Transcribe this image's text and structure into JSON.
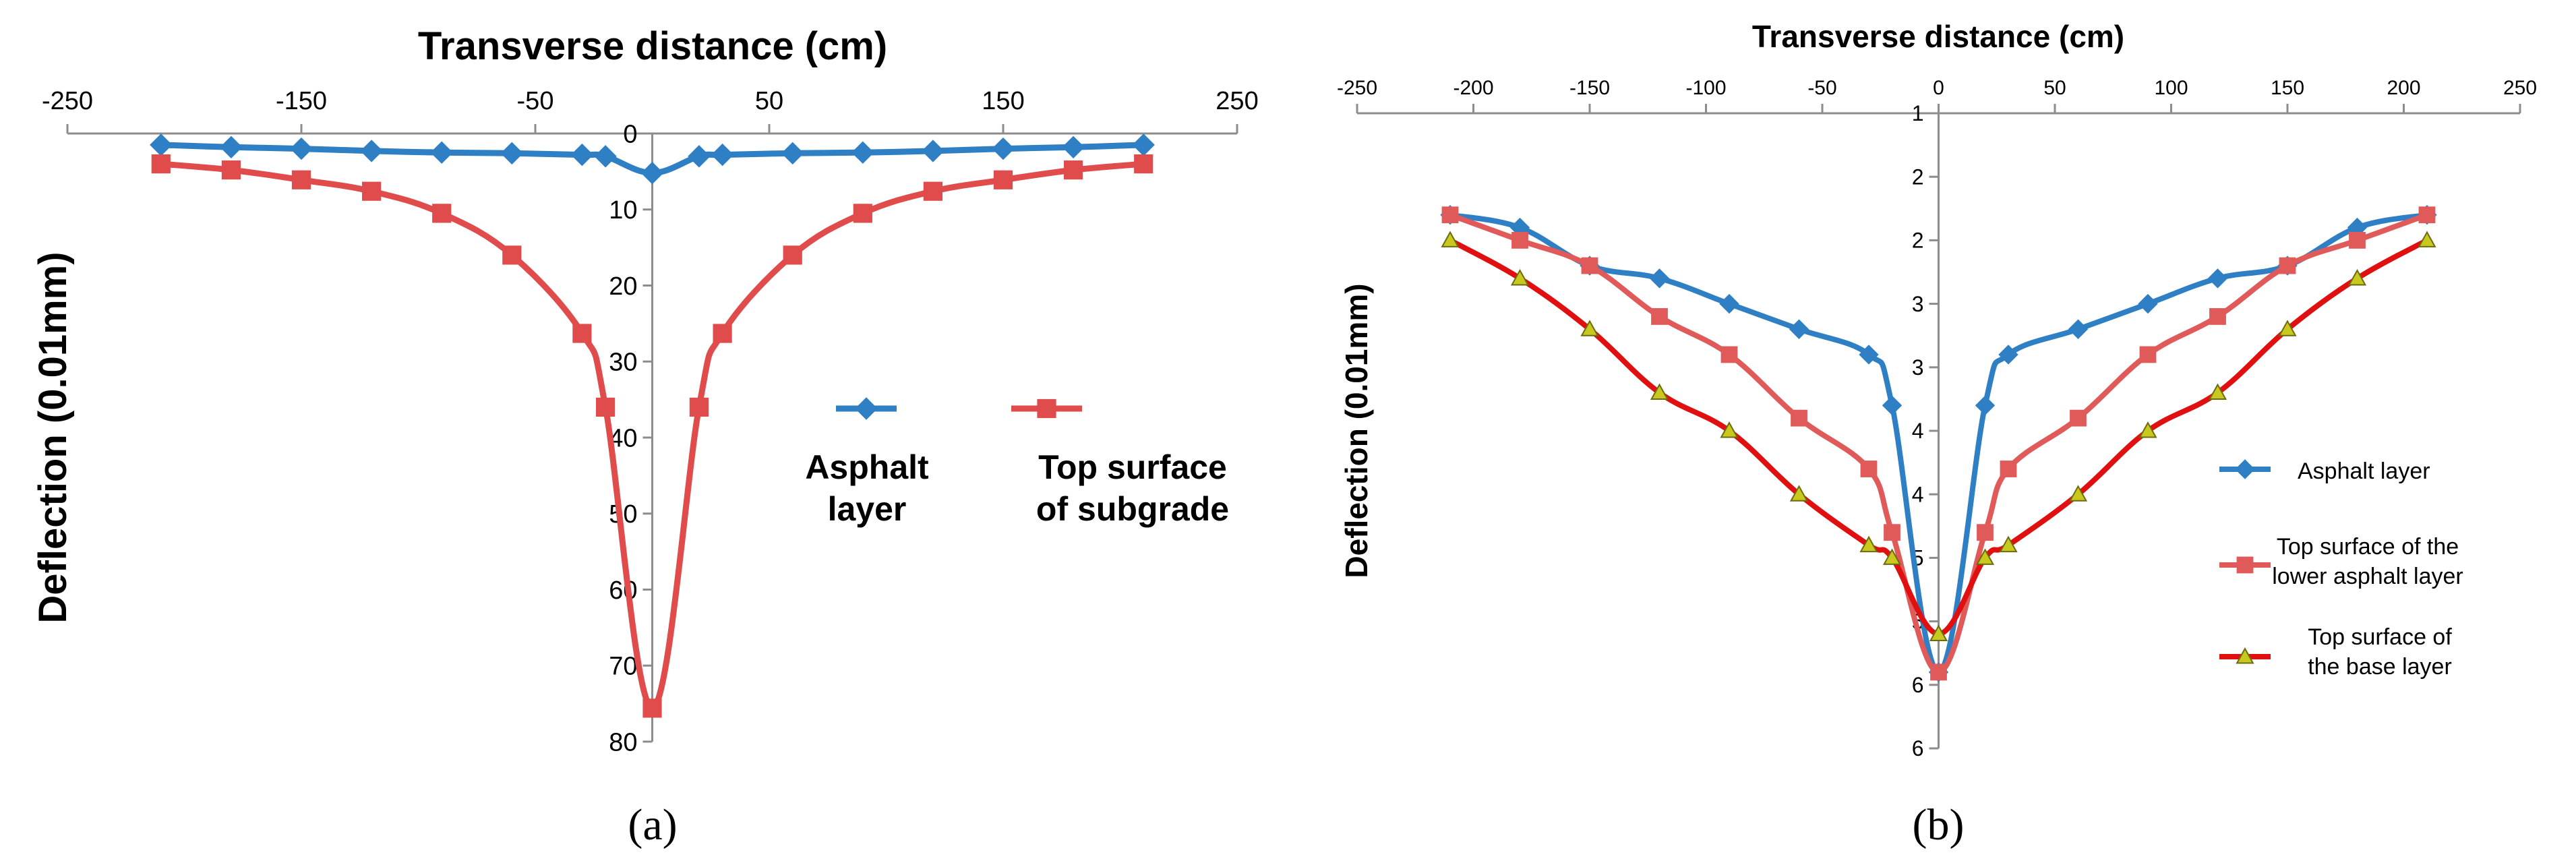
{
  "chart_data": [
    {
      "id": "a",
      "type": "line",
      "panel_label": "(a)",
      "xlabel": "Transverse distance (cm)",
      "ylabel": "Deflection (0.01mm)",
      "xlim": [
        -250,
        250
      ],
      "ylim": [
        0,
        80
      ],
      "y_inverted": true,
      "x_axis_position": "top",
      "x_ticks": [
        "-250",
        "-150",
        "-50",
        "50",
        "150",
        "250"
      ],
      "x_tick_values": [
        -250,
        -150,
        -50,
        50,
        150,
        250
      ],
      "y_ticks": [
        "0",
        "10",
        "20",
        "30",
        "40",
        "50",
        "60",
        "70",
        "80"
      ],
      "y_tick_values": [
        0,
        10,
        20,
        30,
        40,
        50,
        60,
        70,
        80
      ],
      "legend_position": "right",
      "series": [
        {
          "name": "Asphalt layer",
          "legend_lines": [
            "Asphalt",
            "layer"
          ],
          "color": "#2e7fc4",
          "marker": "diamond",
          "x": [
            -210,
            -180,
            -150,
            -120,
            -90,
            -60,
            -30,
            -20,
            0,
            20,
            30,
            60,
            90,
            120,
            150,
            180,
            210
          ],
          "y": [
            1.5,
            1.8,
            2.0,
            2.3,
            2.5,
            2.6,
            2.8,
            3.0,
            5.2,
            3.0,
            2.8,
            2.6,
            2.5,
            2.3,
            2.0,
            1.8,
            1.5
          ]
        },
        {
          "name": "Top surface of subgrade",
          "legend_lines": [
            "Top surface",
            "of subgrade"
          ],
          "color": "#e04b4b",
          "marker": "square",
          "x": [
            -210,
            -180,
            -150,
            -120,
            -90,
            -60,
            -30,
            -20,
            0,
            20,
            30,
            60,
            90,
            120,
            150,
            180,
            210
          ],
          "y": [
            4.0,
            4.8,
            6.1,
            7.6,
            10.5,
            16.0,
            26.3,
            36.0,
            75.6,
            36.0,
            26.3,
            16.0,
            10.5,
            7.6,
            6.1,
            4.8,
            4.0
          ]
        }
      ]
    },
    {
      "id": "b",
      "type": "line",
      "panel_label": "(b)",
      "xlabel": "Transverse distance (cm)",
      "ylabel": "Deflection (0.01mm)",
      "xlim": [
        -250,
        250
      ],
      "ylim": [
        1,
        6
      ],
      "y_inverted": true,
      "x_axis_position": "top",
      "x_ticks": [
        "-250",
        "-200",
        "-150",
        "-100",
        "-50",
        "0",
        "50",
        "100",
        "150",
        "200",
        "250"
      ],
      "x_tick_values": [
        -250,
        -200,
        -150,
        -100,
        -50,
        0,
        50,
        100,
        150,
        200,
        250
      ],
      "y_ticks": [
        "1",
        "2",
        "2",
        "3",
        "3",
        "4",
        "4",
        "5",
        "5",
        "6",
        "6"
      ],
      "y_tick_values": [
        1,
        1.5,
        2,
        2.5,
        3,
        3.5,
        4,
        4.5,
        5,
        5.5,
        6
      ],
      "legend_position": "right",
      "series": [
        {
          "name": "Asphalt layer",
          "legend_lines": [
            "Asphalt layer"
          ],
          "color": "#2e7fc4",
          "marker": "diamond",
          "x": [
            -210,
            -180,
            -150,
            -120,
            -90,
            -60,
            -30,
            -20,
            0,
            20,
            30,
            60,
            90,
            120,
            150,
            180,
            210
          ],
          "y": [
            1.8,
            1.9,
            2.2,
            2.3,
            2.5,
            2.7,
            2.9,
            3.3,
            5.4,
            3.3,
            2.9,
            2.7,
            2.5,
            2.3,
            2.2,
            1.9,
            1.8
          ]
        },
        {
          "name": "Top surface of the lower asphalt layer",
          "legend_lines": [
            "Top surface of the",
            "lower asphalt layer"
          ],
          "color": "#e05a5a",
          "marker": "square",
          "x": [
            -210,
            -180,
            -150,
            -120,
            -90,
            -60,
            -30,
            -20,
            0,
            20,
            30,
            60,
            90,
            120,
            150,
            180,
            210
          ],
          "y": [
            1.8,
            2.0,
            2.2,
            2.6,
            2.9,
            3.4,
            3.8,
            4.3,
            5.4,
            4.3,
            3.8,
            3.4,
            2.9,
            2.6,
            2.2,
            2.0,
            1.8
          ]
        },
        {
          "name": "Top surface of the base layer",
          "legend_lines": [
            "Top surface of",
            "the base layer"
          ],
          "color": "#e01010",
          "marker": "triangle",
          "marker_fill": "#c8c81e",
          "x": [
            -210,
            -180,
            -150,
            -120,
            -90,
            -60,
            -30,
            -20,
            0,
            20,
            30,
            60,
            90,
            120,
            150,
            180,
            210
          ],
          "y": [
            2.0,
            2.3,
            2.7,
            3.2,
            3.5,
            4.0,
            4.4,
            4.5,
            5.1,
            4.5,
            4.4,
            4.0,
            3.5,
            3.2,
            2.7,
            2.3,
            2.0
          ]
        }
      ]
    }
  ]
}
